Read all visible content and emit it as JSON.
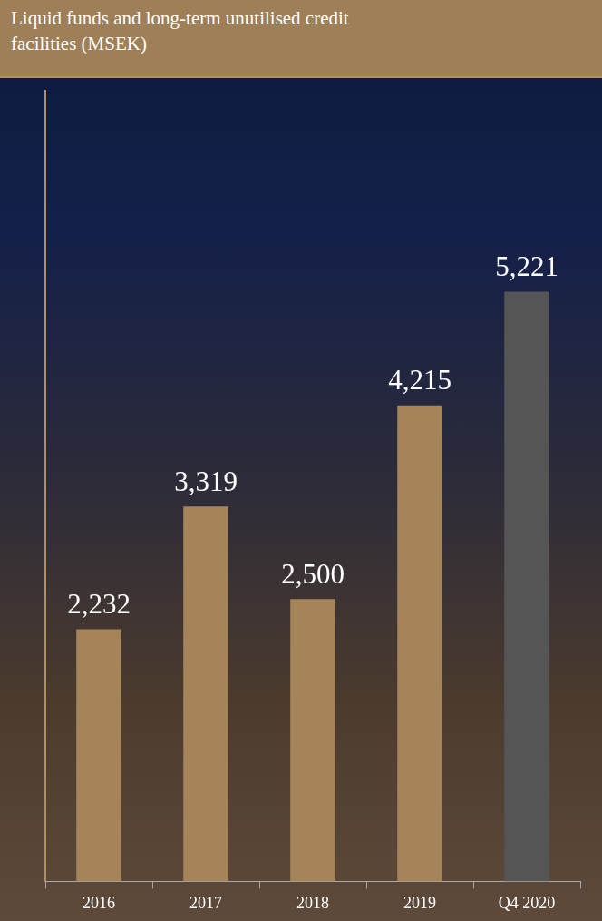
{
  "chart_data": {
    "type": "bar",
    "title": "Liquid funds and long-term unutilised credit facilities (MSEK)",
    "categories": [
      "2016",
      "2017",
      "2018",
      "2019",
      "Q4 2020"
    ],
    "values": [
      2232,
      3319,
      2500,
      4215,
      5221
    ],
    "value_labels": [
      "2,232",
      "3,319",
      "2,500",
      "4,215",
      "5,221"
    ],
    "colors": [
      "#a6845a",
      "#a6845a",
      "#a6845a",
      "#a6845a",
      "#555555"
    ],
    "ylim": [
      0,
      7000
    ],
    "grid": false,
    "data_labels": true,
    "tick_labels": "x"
  }
}
